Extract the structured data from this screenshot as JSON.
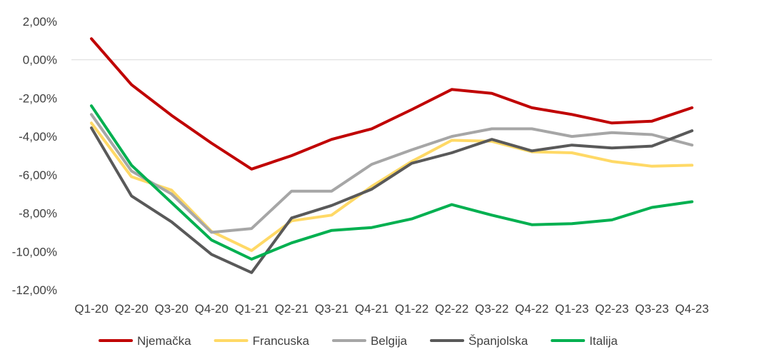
{
  "chart_data": {
    "type": "line",
    "title": "",
    "xlabel": "",
    "ylabel": "",
    "ylim": [
      -12,
      2
    ],
    "y_ticks": [
      "2,00%",
      "0,00%",
      "-2,00%",
      "-4,00%",
      "-6,00%",
      "-8,00%",
      "-10,00%",
      "-12,00%"
    ],
    "grid": "major-y-at-0-only",
    "legend_position": "bottom",
    "categories": [
      "Q1-20",
      "Q2-20",
      "Q3-20",
      "Q4-20",
      "Q1-21",
      "Q2-21",
      "Q3-21",
      "Q4-21",
      "Q1-22",
      "Q2-22",
      "Q3-22",
      "Q4-22",
      "Q1-23",
      "Q2-23",
      "Q3-23",
      "Q4-23"
    ],
    "series": [
      {
        "name": "Njemačka",
        "color": "#C00000",
        "values": [
          1.1,
          -1.3,
          -2.9,
          -4.35,
          -5.7,
          -5.0,
          -4.15,
          -3.6,
          -2.6,
          -1.55,
          -1.75,
          -2.5,
          -2.85,
          -3.3,
          -3.2,
          -2.5
        ]
      },
      {
        "name": "Francuska",
        "color": "#FFD966",
        "values": [
          -3.3,
          -6.1,
          -6.8,
          -8.95,
          -9.95,
          -8.4,
          -8.1,
          -6.6,
          -5.3,
          -4.2,
          -4.25,
          -4.8,
          -4.85,
          -5.3,
          -5.55,
          -5.5
        ]
      },
      {
        "name": "Belgija",
        "color": "#A6A6A6",
        "values": [
          -2.85,
          -5.8,
          -7.0,
          -9.0,
          -8.8,
          -6.85,
          -6.85,
          -5.45,
          -4.7,
          -4.0,
          -3.6,
          -3.6,
          -4.0,
          -3.8,
          -3.9,
          -4.45
        ]
      },
      {
        "name": "Španjolska",
        "color": "#595959",
        "values": [
          -3.55,
          -7.1,
          -8.45,
          -10.15,
          -11.1,
          -8.25,
          -7.6,
          -6.75,
          -5.4,
          -4.85,
          -4.15,
          -4.75,
          -4.45,
          -4.6,
          -4.5,
          -3.7
        ]
      },
      {
        "name": "Italija",
        "color": "#00B050",
        "values": [
          -2.4,
          -5.5,
          -7.45,
          -9.4,
          -10.4,
          -9.55,
          -8.9,
          -8.75,
          -8.3,
          -7.55,
          -8.1,
          -8.6,
          -8.55,
          -8.35,
          -7.7,
          -7.4
        ]
      }
    ]
  }
}
